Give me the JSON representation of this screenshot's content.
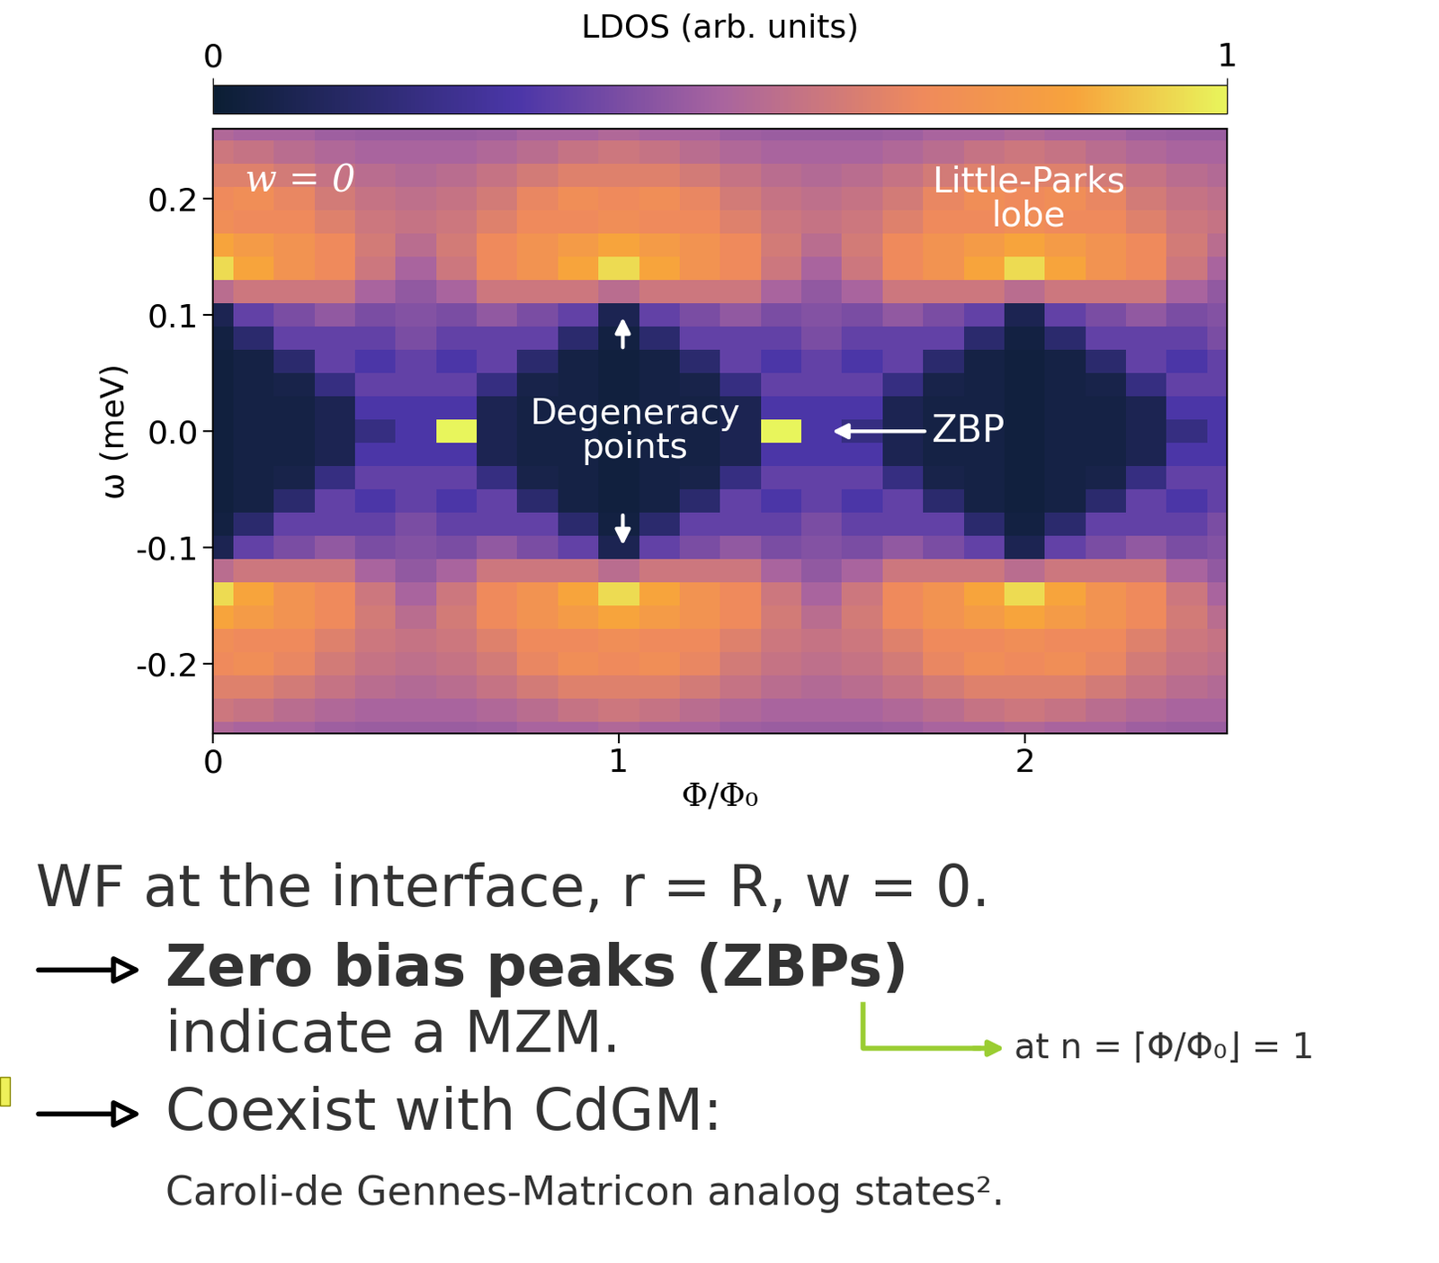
{
  "chart_data": {
    "type": "heatmap",
    "xlabel": "Φ/Φ₀",
    "ylabel": "ω (meV)",
    "xlim": [
      0,
      2.5
    ],
    "ylim": [
      -0.26,
      0.26
    ],
    "xticks": [
      0,
      1,
      2
    ],
    "yticks": [
      -0.2,
      -0.1,
      0.0,
      0.1,
      0.2
    ],
    "x": [
      0.0,
      0.1,
      0.2,
      0.3,
      0.4,
      0.5,
      0.6,
      0.7,
      0.8,
      0.9,
      1.0,
      1.1,
      1.2,
      1.3,
      1.4,
      1.5,
      1.6,
      1.7,
      1.8,
      1.9,
      2.0,
      2.1,
      2.2,
      2.3,
      2.4,
      2.5
    ],
    "y": [
      -0.26,
      -0.24,
      -0.22,
      -0.2,
      -0.18,
      -0.16,
      -0.14,
      -0.12,
      -0.1,
      -0.08,
      -0.06,
      -0.04,
      -0.02,
      0.0,
      0.02,
      0.04,
      0.06,
      0.08,
      0.1,
      0.12,
      0.14,
      0.16,
      0.18,
      0.2,
      0.22,
      0.24,
      0.26
    ],
    "cells": [
      [
        0.52,
        0.5,
        0.5,
        0.48,
        0.47,
        0.47,
        0.47,
        0.48,
        0.5,
        0.5,
        0.52,
        0.5,
        0.5,
        0.48,
        0.47,
        0.47,
        0.47,
        0.48,
        0.5,
        0.5,
        0.52,
        0.5,
        0.5,
        0.48,
        0.47,
        0.47
      ],
      [
        0.6,
        0.58,
        0.55,
        0.52,
        0.5,
        0.5,
        0.5,
        0.52,
        0.55,
        0.58,
        0.6,
        0.58,
        0.55,
        0.52,
        0.5,
        0.5,
        0.5,
        0.52,
        0.55,
        0.58,
        0.6,
        0.58,
        0.55,
        0.52,
        0.5,
        0.5
      ],
      [
        0.65,
        0.65,
        0.62,
        0.58,
        0.55,
        0.53,
        0.55,
        0.58,
        0.62,
        0.65,
        0.65,
        0.65,
        0.62,
        0.58,
        0.55,
        0.53,
        0.55,
        0.58,
        0.62,
        0.65,
        0.65,
        0.65,
        0.62,
        0.58,
        0.55,
        0.53
      ],
      [
        0.7,
        0.72,
        0.68,
        0.62,
        0.58,
        0.56,
        0.58,
        0.62,
        0.68,
        0.72,
        0.7,
        0.72,
        0.68,
        0.62,
        0.58,
        0.56,
        0.58,
        0.62,
        0.68,
        0.72,
        0.7,
        0.72,
        0.68,
        0.62,
        0.58,
        0.56
      ],
      [
        0.72,
        0.7,
        0.7,
        0.65,
        0.6,
        0.58,
        0.6,
        0.65,
        0.7,
        0.7,
        0.72,
        0.7,
        0.7,
        0.65,
        0.6,
        0.58,
        0.6,
        0.65,
        0.7,
        0.7,
        0.72,
        0.7,
        0.7,
        0.65,
        0.6,
        0.58
      ],
      [
        0.85,
        0.8,
        0.75,
        0.7,
        0.62,
        0.55,
        0.62,
        0.7,
        0.75,
        0.8,
        0.85,
        0.8,
        0.75,
        0.7,
        0.62,
        0.55,
        0.62,
        0.7,
        0.75,
        0.8,
        0.85,
        0.8,
        0.75,
        0.7,
        0.62,
        0.55
      ],
      [
        0.95,
        0.85,
        0.75,
        0.7,
        0.6,
        0.5,
        0.6,
        0.7,
        0.75,
        0.85,
        0.95,
        0.85,
        0.75,
        0.7,
        0.6,
        0.5,
        0.6,
        0.7,
        0.75,
        0.85,
        0.95,
        0.85,
        0.75,
        0.7,
        0.6,
        0.5
      ],
      [
        0.55,
        0.6,
        0.6,
        0.6,
        0.5,
        0.45,
        0.5,
        0.6,
        0.6,
        0.6,
        0.55,
        0.6,
        0.6,
        0.6,
        0.5,
        0.45,
        0.5,
        0.6,
        0.6,
        0.6,
        0.55,
        0.6,
        0.6,
        0.6,
        0.5,
        0.45
      ],
      [
        0.08,
        0.35,
        0.4,
        0.45,
        0.4,
        0.42,
        0.4,
        0.45,
        0.4,
        0.35,
        0.08,
        0.35,
        0.4,
        0.45,
        0.4,
        0.42,
        0.4,
        0.45,
        0.4,
        0.35,
        0.08,
        0.35,
        0.4,
        0.45,
        0.4,
        0.42
      ],
      [
        0.04,
        0.15,
        0.35,
        0.35,
        0.35,
        0.4,
        0.35,
        0.35,
        0.35,
        0.15,
        0.04,
        0.15,
        0.35,
        0.35,
        0.35,
        0.4,
        0.35,
        0.35,
        0.35,
        0.15,
        0.04,
        0.15,
        0.35,
        0.35,
        0.35,
        0.4
      ],
      [
        0.03,
        0.05,
        0.15,
        0.35,
        0.3,
        0.35,
        0.3,
        0.35,
        0.15,
        0.05,
        0.03,
        0.05,
        0.15,
        0.35,
        0.3,
        0.35,
        0.3,
        0.35,
        0.15,
        0.05,
        0.03,
        0.05,
        0.15,
        0.35,
        0.3,
        0.35
      ],
      [
        0.03,
        0.05,
        0.06,
        0.2,
        0.35,
        0.35,
        0.35,
        0.2,
        0.06,
        0.05,
        0.03,
        0.05,
        0.06,
        0.2,
        0.35,
        0.35,
        0.35,
        0.2,
        0.06,
        0.05,
        0.03,
        0.05,
        0.06,
        0.2,
        0.35,
        0.35
      ],
      [
        0.03,
        0.05,
        0.05,
        0.08,
        0.3,
        0.3,
        0.3,
        0.08,
        0.05,
        0.05,
        0.03,
        0.05,
        0.05,
        0.08,
        0.3,
        0.3,
        0.3,
        0.08,
        0.05,
        0.05,
        0.03,
        0.05,
        0.05,
        0.08,
        0.3,
        0.3
      ],
      [
        0.03,
        0.05,
        0.05,
        0.08,
        0.2,
        0.3,
        1.0,
        0.08,
        0.05,
        0.05,
        0.03,
        0.05,
        0.05,
        0.08,
        1.0,
        0.3,
        0.2,
        0.08,
        0.05,
        0.05,
        0.03,
        0.05,
        0.05,
        0.08,
        0.2,
        0.3
      ],
      [
        0.03,
        0.05,
        0.05,
        0.08,
        0.3,
        0.3,
        0.3,
        0.08,
        0.05,
        0.05,
        0.03,
        0.05,
        0.05,
        0.08,
        0.3,
        0.3,
        0.3,
        0.08,
        0.05,
        0.05,
        0.03,
        0.05,
        0.05,
        0.08,
        0.3,
        0.3
      ],
      [
        0.03,
        0.05,
        0.06,
        0.2,
        0.35,
        0.35,
        0.35,
        0.2,
        0.06,
        0.05,
        0.03,
        0.05,
        0.06,
        0.2,
        0.35,
        0.35,
        0.35,
        0.2,
        0.06,
        0.05,
        0.03,
        0.05,
        0.06,
        0.2,
        0.35,
        0.35
      ],
      [
        0.03,
        0.05,
        0.15,
        0.35,
        0.3,
        0.35,
        0.3,
        0.35,
        0.15,
        0.05,
        0.03,
        0.05,
        0.15,
        0.35,
        0.3,
        0.35,
        0.3,
        0.35,
        0.15,
        0.05,
        0.03,
        0.05,
        0.15,
        0.35,
        0.3,
        0.35
      ],
      [
        0.04,
        0.15,
        0.35,
        0.35,
        0.35,
        0.4,
        0.35,
        0.35,
        0.35,
        0.15,
        0.04,
        0.15,
        0.35,
        0.35,
        0.35,
        0.4,
        0.35,
        0.35,
        0.35,
        0.15,
        0.04,
        0.15,
        0.35,
        0.35,
        0.35,
        0.4
      ],
      [
        0.08,
        0.35,
        0.4,
        0.45,
        0.4,
        0.42,
        0.4,
        0.45,
        0.4,
        0.35,
        0.08,
        0.35,
        0.4,
        0.45,
        0.4,
        0.42,
        0.4,
        0.45,
        0.4,
        0.35,
        0.08,
        0.35,
        0.4,
        0.45,
        0.4,
        0.42
      ],
      [
        0.55,
        0.6,
        0.6,
        0.6,
        0.5,
        0.45,
        0.5,
        0.6,
        0.6,
        0.6,
        0.55,
        0.6,
        0.6,
        0.6,
        0.5,
        0.45,
        0.5,
        0.6,
        0.6,
        0.6,
        0.55,
        0.6,
        0.6,
        0.6,
        0.5,
        0.45
      ],
      [
        0.95,
        0.85,
        0.75,
        0.7,
        0.6,
        0.5,
        0.6,
        0.7,
        0.75,
        0.85,
        0.95,
        0.85,
        0.75,
        0.7,
        0.6,
        0.5,
        0.6,
        0.7,
        0.75,
        0.85,
        0.95,
        0.85,
        0.75,
        0.7,
        0.6,
        0.5
      ],
      [
        0.85,
        0.8,
        0.75,
        0.7,
        0.62,
        0.55,
        0.62,
        0.7,
        0.75,
        0.8,
        0.85,
        0.8,
        0.75,
        0.7,
        0.62,
        0.55,
        0.62,
        0.7,
        0.75,
        0.8,
        0.85,
        0.8,
        0.75,
        0.7,
        0.62,
        0.55
      ],
      [
        0.72,
        0.7,
        0.7,
        0.65,
        0.6,
        0.58,
        0.6,
        0.65,
        0.7,
        0.7,
        0.72,
        0.7,
        0.7,
        0.65,
        0.6,
        0.58,
        0.6,
        0.65,
        0.7,
        0.7,
        0.72,
        0.7,
        0.7,
        0.65,
        0.6,
        0.58
      ],
      [
        0.7,
        0.72,
        0.68,
        0.62,
        0.58,
        0.56,
        0.58,
        0.62,
        0.68,
        0.72,
        0.7,
        0.72,
        0.68,
        0.62,
        0.58,
        0.56,
        0.58,
        0.62,
        0.68,
        0.72,
        0.7,
        0.72,
        0.68,
        0.62,
        0.58,
        0.56
      ],
      [
        0.65,
        0.65,
        0.62,
        0.58,
        0.55,
        0.53,
        0.55,
        0.58,
        0.62,
        0.65,
        0.65,
        0.65,
        0.62,
        0.58,
        0.55,
        0.53,
        0.55,
        0.58,
        0.62,
        0.65,
        0.65,
        0.65,
        0.62,
        0.58,
        0.55,
        0.53
      ],
      [
        0.6,
        0.58,
        0.55,
        0.52,
        0.5,
        0.5,
        0.5,
        0.52,
        0.55,
        0.58,
        0.6,
        0.58,
        0.55,
        0.52,
        0.5,
        0.5,
        0.5,
        0.52,
        0.55,
        0.58,
        0.6,
        0.58,
        0.55,
        0.52,
        0.5,
        0.5
      ],
      [
        0.52,
        0.5,
        0.5,
        0.48,
        0.47,
        0.47,
        0.47,
        0.48,
        0.5,
        0.5,
        0.52,
        0.5,
        0.5,
        0.48,
        0.47,
        0.47,
        0.47,
        0.48,
        0.5,
        0.5,
        0.52,
        0.5,
        0.5,
        0.48,
        0.47,
        0.47
      ]
    ],
    "colorbar": {
      "label": "LDOS (arb. units)",
      "lim": [
        0,
        1
      ],
      "ticks": [
        0,
        1
      ]
    },
    "annotations": [
      "w = 0",
      "Little-Parks\nlobe",
      "Degeneracy\npoints",
      "ZBP"
    ]
  },
  "slide_text": {
    "heading": "WF at the interface, r = R, w = 0.",
    "bullets": [
      {
        "title": "Zero bias peaks (ZBPs)",
        "text": "indicate a MZM.",
        "note": "at n = ⌈Φ/Φ₀⌋ = 1"
      },
      {
        "title": "Coexist with CdGM:",
        "text": "Caroli-de Gennes-Matricon analog states²."
      }
    ]
  }
}
